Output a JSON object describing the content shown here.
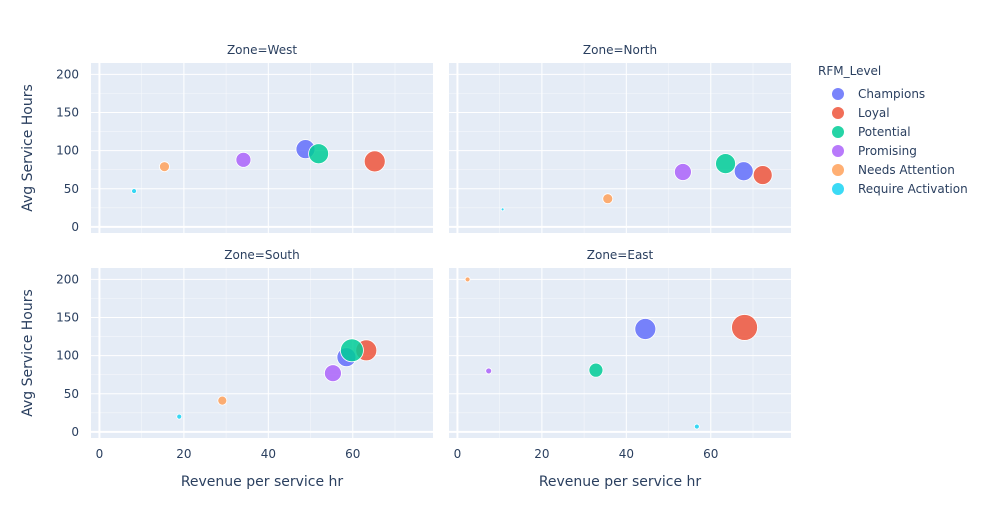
{
  "chart_data": {
    "type": "scatter",
    "facet_label_prefix": "Zone=",
    "facets": [
      "West",
      "North",
      "South",
      "East"
    ],
    "xlabel": "Revenue per service hr",
    "ylabel": "Avg Service Hours",
    "xlim": [
      -2,
      79
    ],
    "ylim": [
      -8,
      215
    ],
    "xticks": [
      0,
      20,
      40,
      60
    ],
    "yticks": [
      0,
      50,
      100,
      150,
      200
    ],
    "legend": {
      "title": "RFM_Level",
      "position": "right",
      "entries": [
        {
          "name": "Champions",
          "color": "#636efa"
        },
        {
          "name": "Loyal",
          "color": "#ef553b"
        },
        {
          "name": "Potential",
          "color": "#00cc96"
        },
        {
          "name": "Promising",
          "color": "#ab63fa"
        },
        {
          "name": "Needs Attention",
          "color": "#ffa15a"
        },
        {
          "name": "Require Activation",
          "color": "#19d3f3"
        }
      ]
    },
    "series": [
      {
        "name": "Champions",
        "points": [
          {
            "zone": "West",
            "x": 48.8,
            "y": 102,
            "size": 19
          },
          {
            "zone": "North",
            "x": 67.8,
            "y": 73,
            "size": 19
          },
          {
            "zone": "South",
            "x": 58.5,
            "y": 98,
            "size": 19
          },
          {
            "zone": "East",
            "x": 44.5,
            "y": 135,
            "size": 21
          }
        ]
      },
      {
        "name": "Loyal",
        "points": [
          {
            "zone": "West",
            "x": 65.2,
            "y": 86,
            "size": 21
          },
          {
            "zone": "North",
            "x": 72.3,
            "y": 68,
            "size": 19
          },
          {
            "zone": "South",
            "x": 63.2,
            "y": 107,
            "size": 21
          },
          {
            "zone": "East",
            "x": 68.0,
            "y": 137,
            "size": 26
          }
        ]
      },
      {
        "name": "Potential",
        "points": [
          {
            "zone": "West",
            "x": 51.9,
            "y": 96,
            "size": 20
          },
          {
            "zone": "North",
            "x": 63.5,
            "y": 83,
            "size": 20
          },
          {
            "zone": "South",
            "x": 59.8,
            "y": 107,
            "size": 23
          },
          {
            "zone": "East",
            "x": 32.8,
            "y": 81,
            "size": 14
          }
        ]
      },
      {
        "name": "Promising",
        "points": [
          {
            "zone": "West",
            "x": 34.1,
            "y": 88,
            "size": 15
          },
          {
            "zone": "North",
            "x": 53.4,
            "y": 72,
            "size": 17
          },
          {
            "zone": "South",
            "x": 55.3,
            "y": 77,
            "size": 17
          },
          {
            "zone": "East",
            "x": 7.4,
            "y": 80,
            "size": 6
          }
        ]
      },
      {
        "name": "Needs Attention",
        "points": [
          {
            "zone": "West",
            "x": 15.4,
            "y": 79,
            "size": 10
          },
          {
            "zone": "North",
            "x": 35.6,
            "y": 37,
            "size": 10
          },
          {
            "zone": "South",
            "x": 29.1,
            "y": 41,
            "size": 9
          },
          {
            "zone": "East",
            "x": 2.4,
            "y": 200,
            "size": 5
          }
        ]
      },
      {
        "name": "Require Activation",
        "points": [
          {
            "zone": "West",
            "x": 8.2,
            "y": 47,
            "size": 5
          },
          {
            "zone": "North",
            "x": 10.7,
            "y": 23,
            "size": 3
          },
          {
            "zone": "South",
            "x": 18.9,
            "y": 20,
            "size": 5
          },
          {
            "zone": "East",
            "x": 56.7,
            "y": 7,
            "size": 5
          }
        ]
      }
    ]
  }
}
